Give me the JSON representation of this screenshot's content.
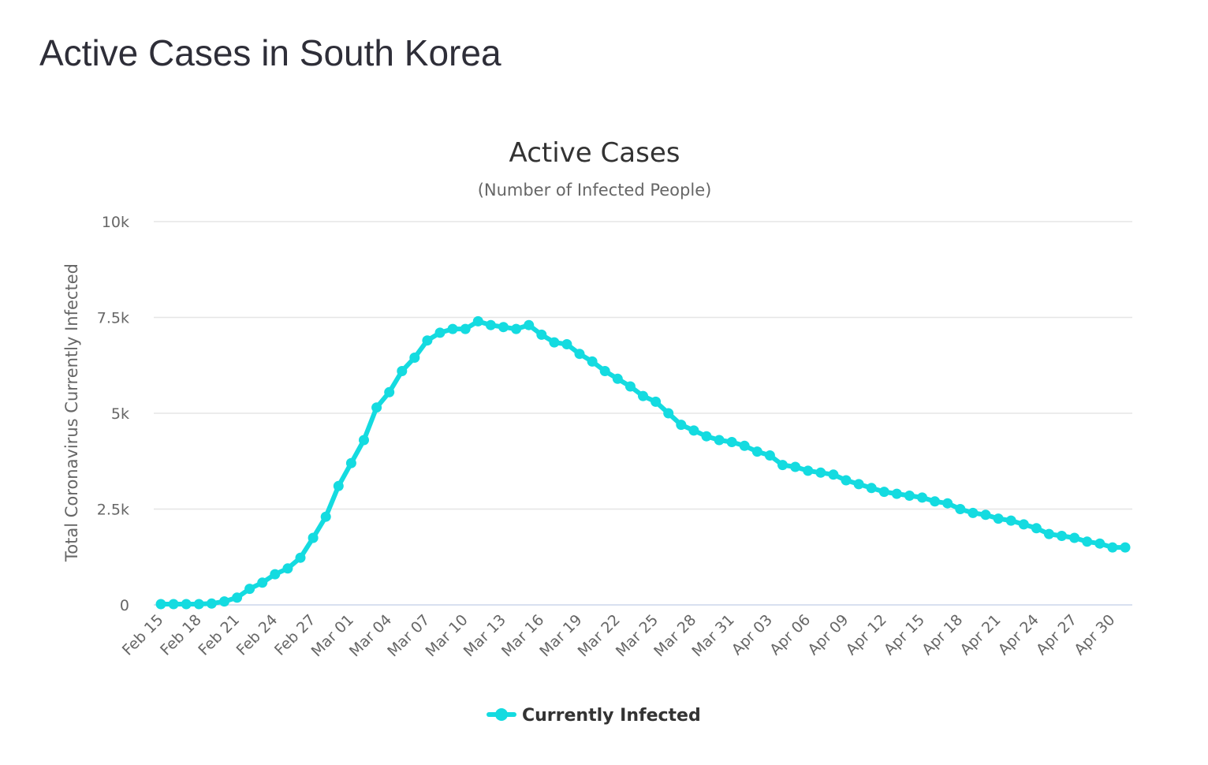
{
  "page": {
    "heading": "Active Cases in South Korea"
  },
  "chart_data": {
    "type": "line",
    "title": "Active Cases",
    "subtitle": "(Number of Infected People)",
    "xlabel": "",
    "ylabel": "Total Coronavirus Currently Infected",
    "ylim": [
      0,
      10000
    ],
    "y_ticks": [
      0,
      2500,
      5000,
      7500,
      10000
    ],
    "y_tick_labels": [
      "0",
      "2.5k",
      "5k",
      "7.5k",
      "10k"
    ],
    "x_tick_labels": [
      "Feb 15",
      "Feb 18",
      "Feb 21",
      "Feb 24",
      "Feb 27",
      "Mar 01",
      "Mar 04",
      "Mar 07",
      "Mar 10",
      "Mar 13",
      "Mar 16",
      "Mar 19",
      "Mar 22",
      "Mar 25",
      "Mar 28",
      "Mar 31",
      "Apr 03",
      "Apr 06",
      "Apr 09",
      "Apr 12",
      "Apr 15",
      "Apr 18",
      "Apr 21",
      "Apr 24",
      "Apr 27",
      "Apr 30"
    ],
    "x_tick_every": 3,
    "grid": true,
    "legend_position": "bottom-center",
    "series": [
      {
        "name": "Currently Infected",
        "color": "#14dbe0",
        "dates": [
          "Feb 15",
          "Feb 16",
          "Feb 17",
          "Feb 18",
          "Feb 19",
          "Feb 20",
          "Feb 21",
          "Feb 22",
          "Feb 23",
          "Feb 24",
          "Feb 25",
          "Feb 26",
          "Feb 27",
          "Feb 28",
          "Feb 29",
          "Mar 01",
          "Mar 02",
          "Mar 03",
          "Mar 04",
          "Mar 05",
          "Mar 06",
          "Mar 07",
          "Mar 08",
          "Mar 09",
          "Mar 10",
          "Mar 11",
          "Mar 12",
          "Mar 13",
          "Mar 14",
          "Mar 15",
          "Mar 16",
          "Mar 17",
          "Mar 18",
          "Mar 19",
          "Mar 20",
          "Mar 21",
          "Mar 22",
          "Mar 23",
          "Mar 24",
          "Mar 25",
          "Mar 26",
          "Mar 27",
          "Mar 28",
          "Mar 29",
          "Mar 30",
          "Mar 31",
          "Apr 01",
          "Apr 02",
          "Apr 03",
          "Apr 04",
          "Apr 05",
          "Apr 06",
          "Apr 07",
          "Apr 08",
          "Apr 09",
          "Apr 10",
          "Apr 11",
          "Apr 12",
          "Apr 13",
          "Apr 14",
          "Apr 15",
          "Apr 16",
          "Apr 17",
          "Apr 18",
          "Apr 19",
          "Apr 20",
          "Apr 21",
          "Apr 22",
          "Apr 23",
          "Apr 24",
          "Apr 25",
          "Apr 26",
          "Apr 27",
          "Apr 28",
          "Apr 29",
          "Apr 30",
          "May 01"
        ],
        "values": [
          20,
          20,
          20,
          20,
          35,
          90,
          190,
          420,
          580,
          800,
          950,
          1230,
          1750,
          2300,
          3100,
          3700,
          4300,
          5150,
          5550,
          6100,
          6450,
          6900,
          7100,
          7200,
          7200,
          7400,
          7300,
          7250,
          7200,
          7300,
          7050,
          6850,
          6800,
          6550,
          6350,
          6100,
          5900,
          5700,
          5450,
          5300,
          5000,
          4700,
          4550,
          4400,
          4300,
          4250,
          4150,
          4000,
          3900,
          3650,
          3600,
          3500,
          3450,
          3400,
          3250,
          3150,
          3050,
          2950,
          2900,
          2850,
          2800,
          2700,
          2650,
          2500,
          2400,
          2350,
          2250,
          2200,
          2100,
          2000,
          1850,
          1800,
          1750,
          1650,
          1600,
          1500,
          1500
        ]
      }
    ]
  }
}
